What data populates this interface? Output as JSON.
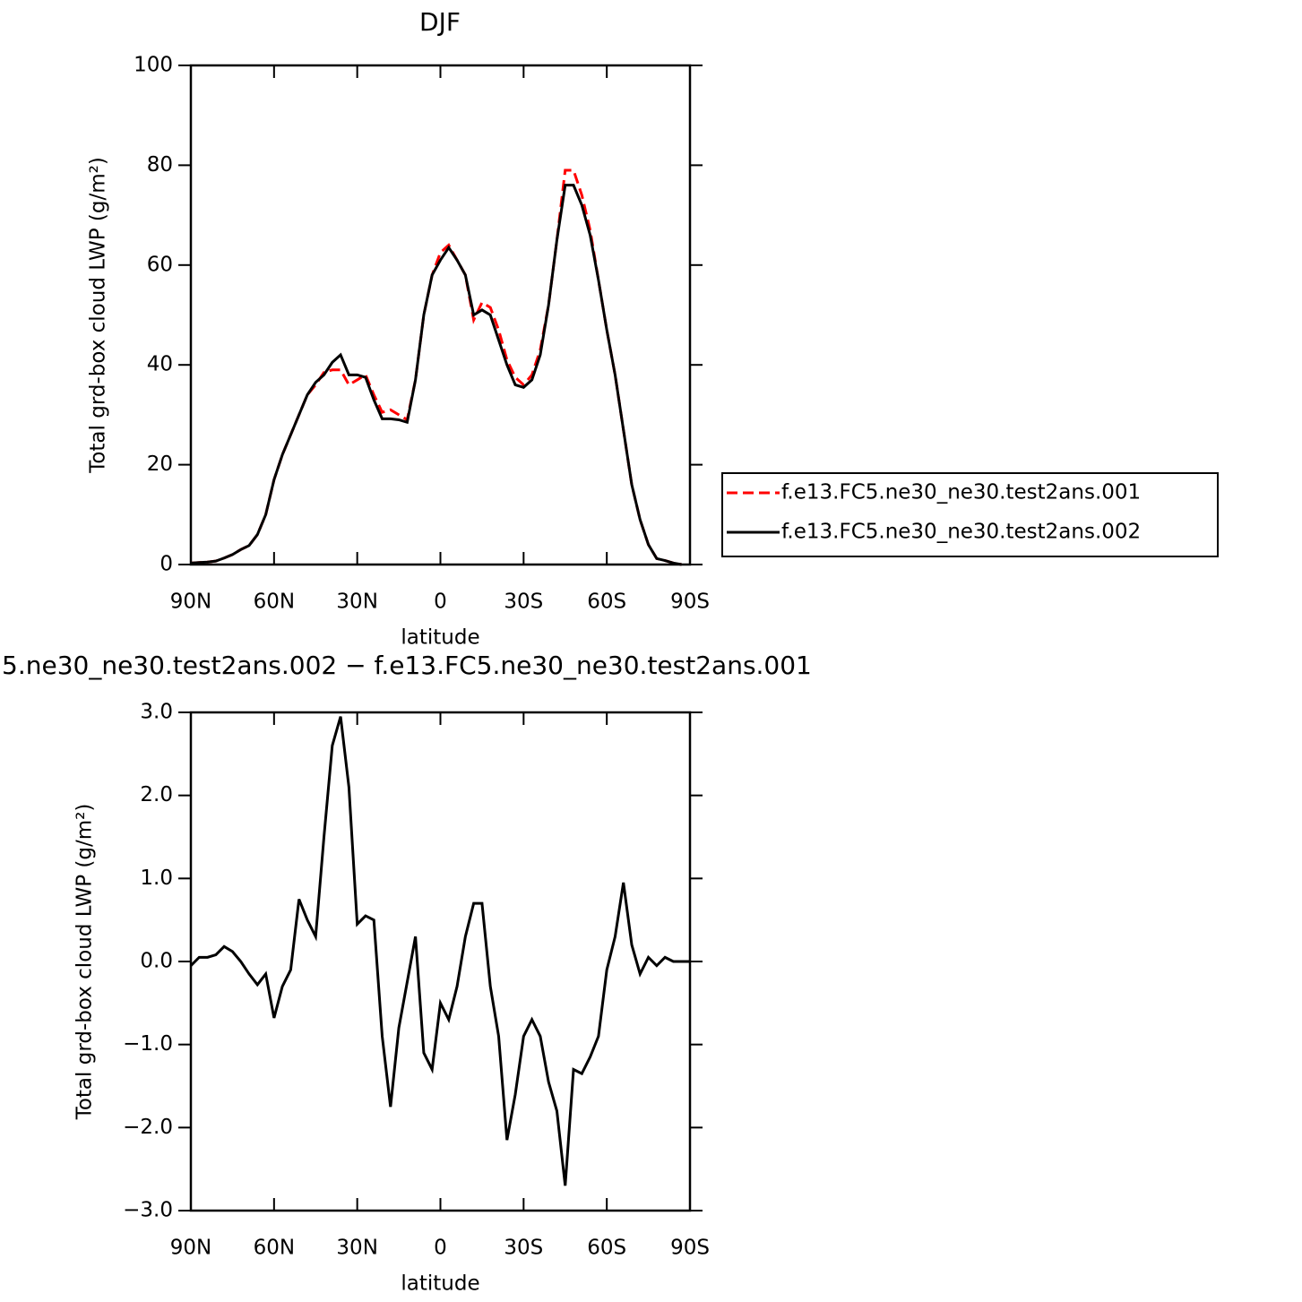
{
  "chart_data": [
    {
      "type": "line",
      "title": "DJF",
      "xlabel": "latitude",
      "ylabel": "Total grd-box cloud LWP (g/m²)",
      "x": [
        90,
        87,
        84,
        81,
        78,
        75,
        72,
        69,
        66,
        63,
        60,
        57,
        54,
        51,
        48,
        45,
        42,
        39,
        36,
        33,
        30,
        27,
        24,
        21,
        18,
        15,
        12,
        9,
        6,
        3,
        0,
        -3,
        -6,
        -9,
        -12,
        -15,
        -18,
        -21,
        -24,
        -27,
        -30,
        -33,
        -36,
        -39,
        -42,
        -45,
        -48,
        -51,
        -54,
        -57,
        -60,
        -63,
        -66,
        -69,
        -72,
        -75,
        -78,
        -81,
        -84,
        -87,
        -90
      ],
      "series": [
        {
          "name": "f.e13.FC5.ne30_ne30.test2ans.001",
          "color": "#ff0000",
          "line_style": "dashed",
          "values": [
            0.3,
            0.4,
            0.5,
            0.7,
            1.3,
            2,
            3,
            3.8,
            6,
            10,
            17,
            22,
            26,
            30,
            34,
            36,
            38.5,
            39,
            39,
            36,
            37,
            38,
            34,
            30.5,
            31,
            30,
            29,
            37,
            50,
            58,
            62.5,
            64,
            61,
            58,
            49,
            52.5,
            51.5,
            47,
            41,
            37.5,
            36,
            38,
            43,
            52,
            65,
            79,
            79,
            74,
            67,
            57,
            47,
            38,
            27,
            16,
            9,
            4,
            1.2,
            0.8,
            0.3,
            0,
            null
          ]
        },
        {
          "name": "f.e13.FC5.ne30_ne30.test2ans.002",
          "color": "#000000",
          "line_style": "solid",
          "values": [
            0.3,
            0.4,
            0.5,
            0.7,
            1.3,
            2,
            3,
            3.8,
            6,
            10,
            17,
            22,
            26,
            30,
            34,
            36.5,
            38,
            40.5,
            42,
            38,
            38,
            37.5,
            33,
            29.2,
            29.2,
            29,
            28.5,
            37,
            50,
            58,
            61,
            63.5,
            61,
            58,
            50,
            51,
            50,
            45,
            40,
            36,
            35.5,
            37,
            42,
            52,
            65,
            76,
            76,
            72,
            66,
            57,
            47,
            38,
            27,
            16,
            9,
            4,
            1.2,
            0.8,
            0.3,
            0,
            null
          ]
        }
      ],
      "xlim": [
        90,
        -90
      ],
      "xticks": [
        {
          "value": 90,
          "label": "90N"
        },
        {
          "value": 60,
          "label": "60N"
        },
        {
          "value": 30,
          "label": "30N"
        },
        0,
        {
          "value": -30,
          "label": "30S"
        },
        {
          "value": -60,
          "label": "60S"
        },
        {
          "value": -90,
          "label": "90S"
        }
      ],
      "ylim": [
        0,
        100
      ],
      "yticks": [
        0,
        20,
        40,
        60,
        80,
        100
      ],
      "legend": "right"
    },
    {
      "type": "line",
      "title": "5.ne30_ne30.test2ans.002 − f.e13.FC5.ne30_ne30.test2ans.001",
      "xlabel": "latitude",
      "ylabel": "Total grd-box cloud LWP (g/m²)",
      "x": [
        90,
        87,
        84,
        81,
        78,
        75,
        72,
        69,
        66,
        63,
        60,
        57,
        54,
        51,
        48,
        45,
        42,
        39,
        36,
        33,
        30,
        27,
        24,
        21,
        18,
        15,
        12,
        9,
        6,
        3,
        0,
        -3,
        -6,
        -9,
        -12,
        -15,
        -18,
        -21,
        -24,
        -27,
        -30,
        -33,
        -36,
        -39,
        -42,
        -45,
        -48,
        -51,
        -54,
        -57,
        -60,
        -63,
        -66,
        -69,
        -72,
        -75,
        -78,
        -81,
        -84,
        -87,
        -90
      ],
      "series": [
        {
          "color": "#000000",
          "line_style": "solid",
          "values": [
            -0.05,
            0.05,
            0.05,
            0.08,
            0.18,
            0.12,
            0,
            -0.15,
            -0.28,
            -0.15,
            -0.68,
            -0.3,
            -0.1,
            0.75,
            0.5,
            0.3,
            1.5,
            2.6,
            2.95,
            2.1,
            0.45,
            0.55,
            0.5,
            -0.9,
            -1.75,
            -0.8,
            -0.25,
            0.3,
            -1.1,
            -1.3,
            -0.5,
            -0.7,
            -0.3,
            0.3,
            0.7,
            0.7,
            -0.3,
            -0.9,
            -2.15,
            -1.6,
            -0.9,
            -0.7,
            -0.9,
            -1.45,
            -1.8,
            -2.7,
            -1.3,
            -1.35,
            -1.15,
            -0.9,
            -0.1,
            0.3,
            0.95,
            0.2,
            -0.15,
            0.05,
            -0.05,
            0.05,
            0,
            0,
            0
          ]
        }
      ],
      "xlim": [
        90,
        -90
      ],
      "xticks": [
        {
          "value": 90,
          "label": "90N"
        },
        {
          "value": 60,
          "label": "60N"
        },
        {
          "value": 30,
          "label": "30N"
        },
        0,
        {
          "value": -30,
          "label": "30S"
        },
        {
          "value": -60,
          "label": "60S"
        },
        {
          "value": -90,
          "label": "90S"
        }
      ],
      "ylim": [
        -3,
        3
      ],
      "yticks": [
        {
          "value": -3,
          "label": "−3.0"
        },
        {
          "value": -2,
          "label": "−2.0"
        },
        {
          "value": -1,
          "label": "−1.0"
        },
        {
          "value": 0,
          "label": "0.0"
        },
        {
          "value": 1,
          "label": "1.0"
        },
        {
          "value": 2,
          "label": "2.0"
        },
        {
          "value": 3,
          "label": "3.0"
        }
      ]
    }
  ]
}
